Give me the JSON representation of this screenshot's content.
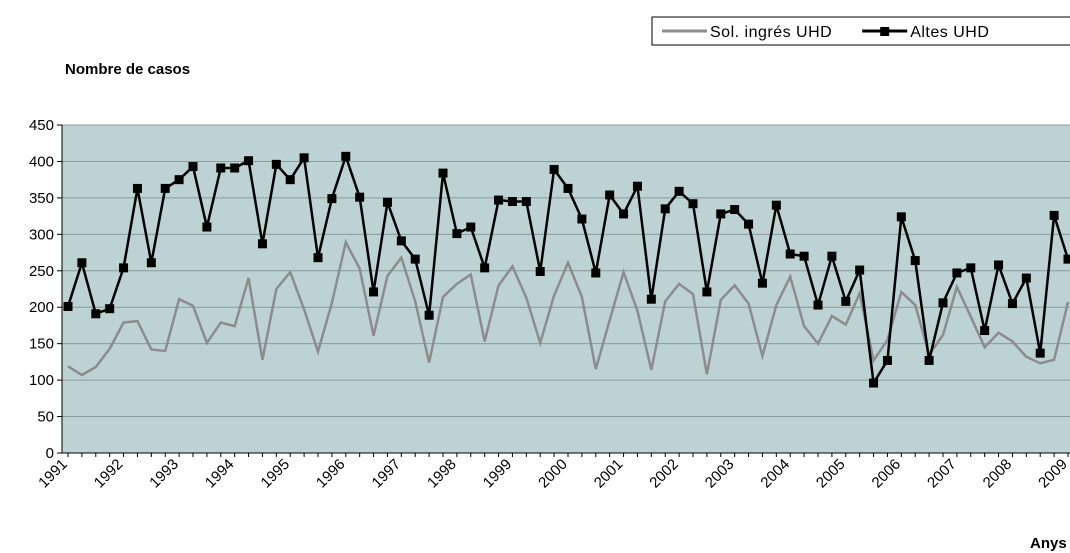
{
  "chart_data": {
    "type": "line",
    "title": "Nombre de casos",
    "x_label": "Anys",
    "categories": [
      "1991",
      null,
      null,
      null,
      "1992",
      null,
      null,
      null,
      "1993",
      null,
      null,
      null,
      "1994",
      null,
      null,
      null,
      "1995",
      null,
      null,
      null,
      "1996",
      null,
      null,
      null,
      "1997",
      null,
      null,
      null,
      "1998",
      null,
      null,
      null,
      "1999",
      null,
      null,
      null,
      "2000",
      null,
      null,
      null,
      "2001",
      null,
      null,
      null,
      "2002",
      null,
      null,
      null,
      "2003",
      null,
      null,
      null,
      "2004",
      null,
      null,
      null,
      "2005",
      null,
      null,
      null,
      "2006",
      null,
      null,
      null,
      "2007",
      null,
      null,
      null,
      "2008",
      null,
      null,
      null,
      "2009"
    ],
    "series": [
      {
        "name": "Sol. ingrés UHD",
        "color": "#8c8c8c",
        "marker": false,
        "values": [
          119,
          107,
          118,
          143,
          179,
          181,
          142,
          140,
          211,
          202,
          151,
          179,
          174,
          240,
          128,
          225,
          248,
          197,
          139,
          206,
          289,
          253,
          161,
          243,
          268,
          208,
          124,
          214,
          232,
          245,
          153,
          230,
          256,
          213,
          151,
          216,
          261,
          214,
          115,
          182,
          248,
          195,
          114,
          208,
          232,
          218,
          108,
          210,
          230,
          205,
          133,
          203,
          242,
          174,
          150,
          188,
          176,
          219,
          127,
          155,
          221,
          203,
          135,
          162,
          228,
          187,
          145,
          165,
          153,
          132,
          123,
          128,
          207
        ]
      },
      {
        "name": "Altes UHD",
        "color": "#000000",
        "marker": true,
        "values": [
          201,
          261,
          191,
          198,
          254,
          363,
          261,
          363,
          375,
          393,
          310,
          391,
          391,
          401,
          287,
          396,
          375,
          405,
          268,
          349,
          407,
          351,
          221,
          344,
          291,
          266,
          189,
          384,
          301,
          310,
          254,
          347,
          345,
          345,
          249,
          389,
          363,
          321,
          247,
          354,
          328,
          366,
          211,
          335,
          359,
          342,
          221,
          328,
          334,
          314,
          233,
          340,
          273,
          270,
          203,
          270,
          208,
          251,
          96,
          127,
          324,
          264,
          127,
          206,
          247,
          254,
          168,
          258,
          205,
          240,
          137,
          326,
          266
        ]
      }
    ],
    "ylim": [
      0,
      450
    ],
    "yticks": [
      0,
      50,
      100,
      150,
      200,
      250,
      300,
      350,
      400,
      450
    ],
    "grid": true,
    "plot_background": "#bdd3d3",
    "legend_position": "top-right"
  }
}
